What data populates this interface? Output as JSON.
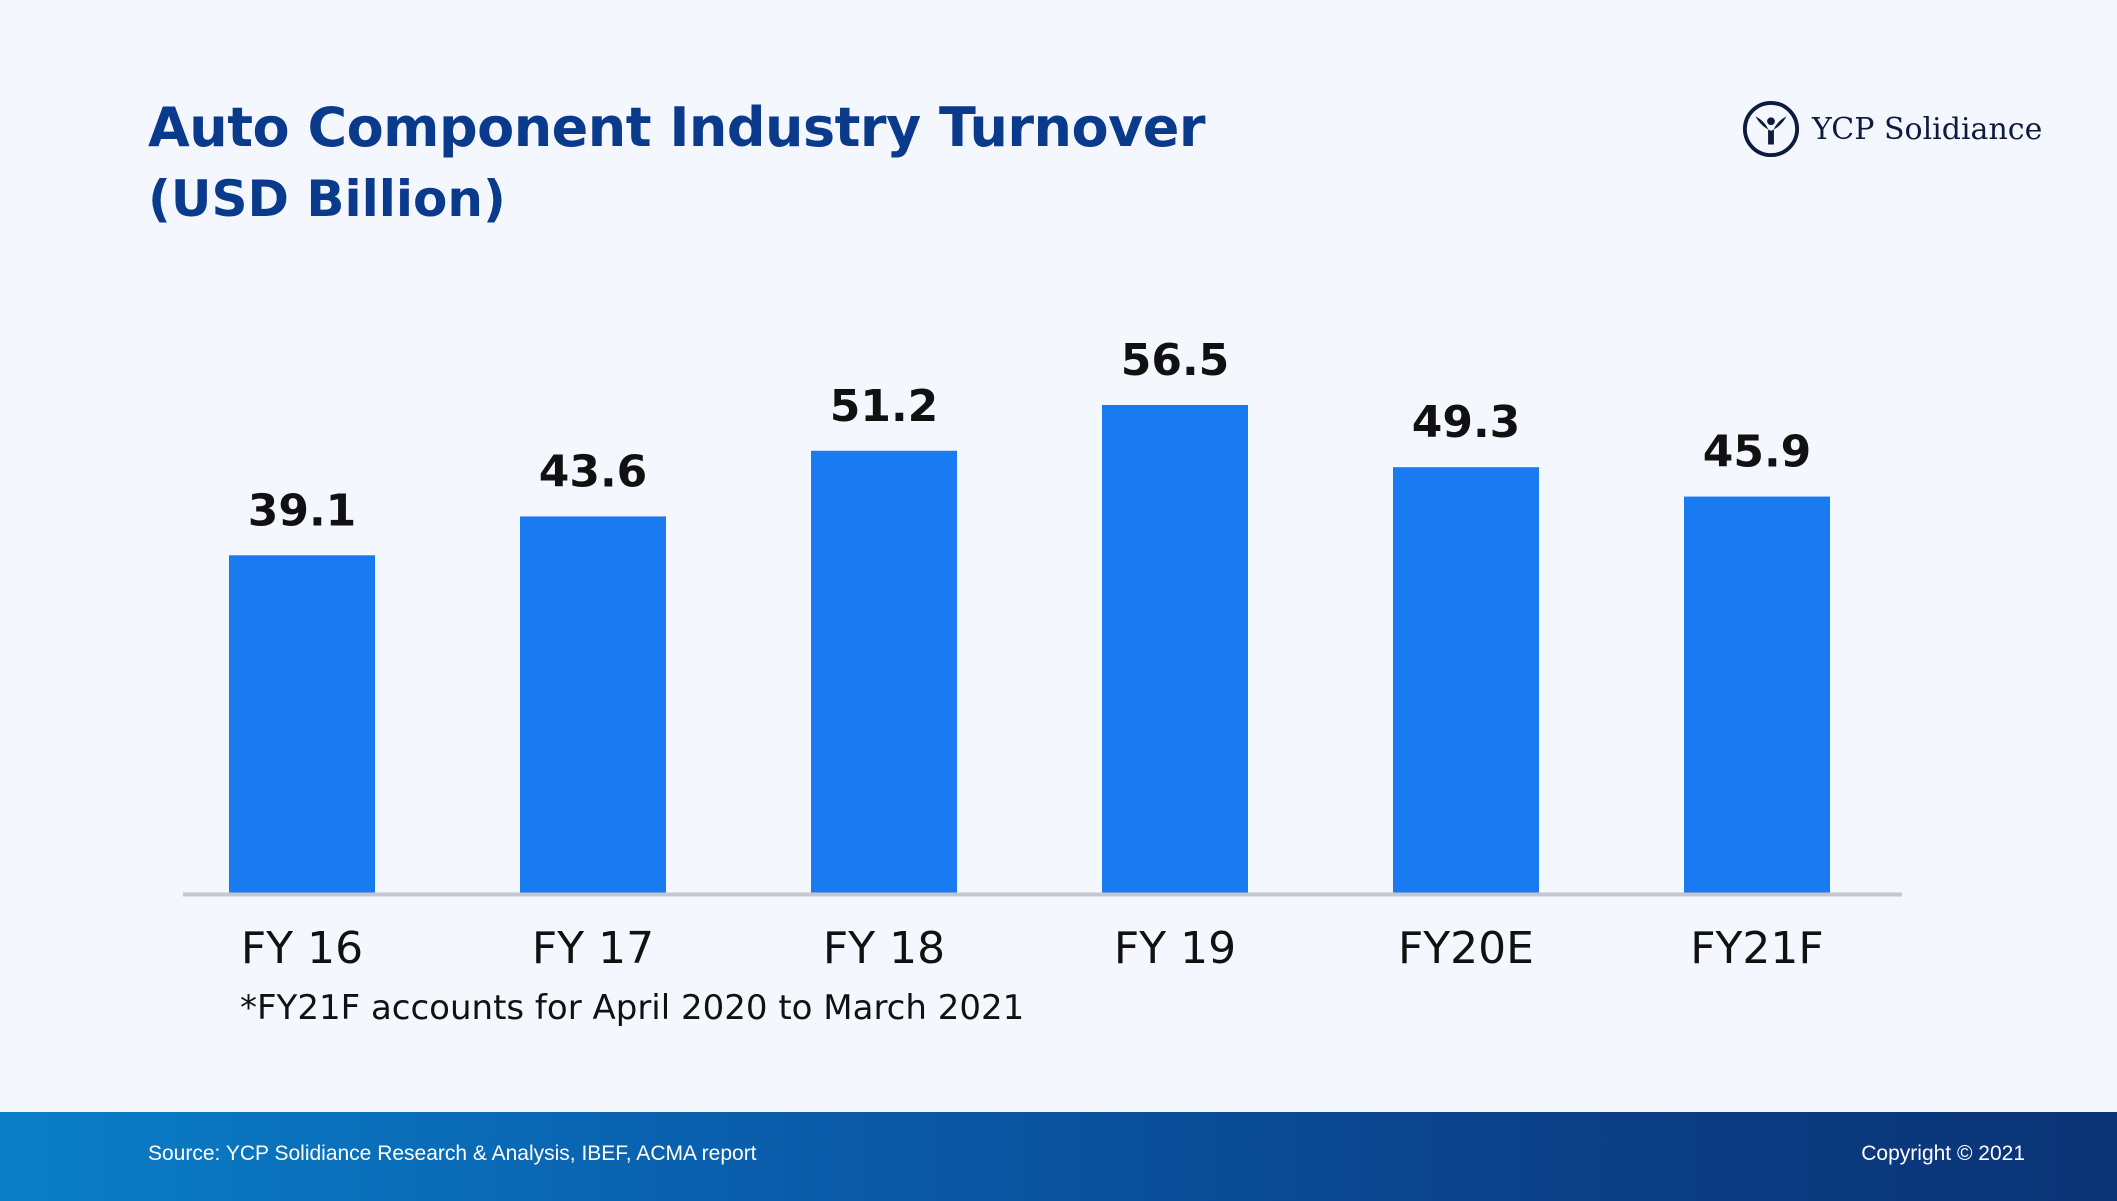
{
  "header": {
    "title": "Auto Component Industry Turnover",
    "subtitle": "(USD Billion)"
  },
  "logo": {
    "text": "YCP Solidiance",
    "icon": "ycp-emblem-icon"
  },
  "chart_data": {
    "type": "bar",
    "title": "Auto Component Industry Turnover",
    "subtitle": "(USD Billion)",
    "xlabel": "",
    "ylabel": "",
    "categories": [
      "FY 16",
      "FY 17",
      "FY 18",
      "FY 19",
      "FY20E",
      "FY21F"
    ],
    "values": [
      39.1,
      43.6,
      51.2,
      56.5,
      49.3,
      45.9
    ],
    "value_labels": [
      "39.1",
      "43.6",
      "51.2",
      "56.5",
      "49.3",
      "45.9"
    ],
    "ylim": [
      0,
      56.5
    ],
    "grid": false,
    "legend": "none",
    "colors": {
      "bar": "#1a7af2",
      "axis": "#c4c8ce",
      "label": "#111111"
    }
  },
  "footnote": "*FY21F accounts for April 2020 to March 2021",
  "footer": {
    "source": "Source: YCP Solidiance Research & Analysis, IBEF, ACMA report",
    "copyright": "Copyright © 2021"
  }
}
